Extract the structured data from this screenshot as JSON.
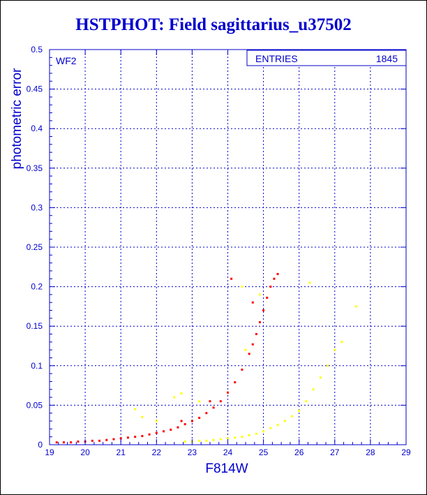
{
  "chart_data": {
    "type": "scatter",
    "title": "HSTPHOT: Field sagittarius_u37502",
    "xlabel": "F814W",
    "ylabel": "photometric error",
    "xlim": [
      19,
      29
    ],
    "ylim": [
      0,
      0.5
    ],
    "x_ticks": [
      19,
      20,
      21,
      22,
      23,
      24,
      25,
      26,
      27,
      28,
      29
    ],
    "y_ticks": [
      0,
      0.05,
      0.1,
      0.15,
      0.2,
      0.25,
      0.3,
      0.35,
      0.4,
      0.45,
      0.5
    ],
    "y_tick_labels": [
      "0",
      "0.05",
      "0.1",
      "0.15",
      "0.2",
      "0.25",
      "0.3",
      "0.35",
      "0.4",
      "0.45",
      "0.5"
    ],
    "grid": true,
    "panel_label": "WF2",
    "stats_box": {
      "label": "ENTRIES",
      "value": "1845"
    },
    "colors": {
      "axis": "#0000cc",
      "grid": "#0000cc",
      "primary": "#ff0000",
      "secondary": "#ffff00"
    },
    "series": [
      {
        "color": "#ff0000",
        "points": [
          [
            19.2,
            0.003
          ],
          [
            19.4,
            0.003
          ],
          [
            19.6,
            0.003
          ],
          [
            19.8,
            0.004
          ],
          [
            20.0,
            0.004
          ],
          [
            20.2,
            0.005
          ],
          [
            20.4,
            0.005
          ],
          [
            20.6,
            0.006
          ],
          [
            20.8,
            0.007
          ],
          [
            21.0,
            0.008
          ],
          [
            21.2,
            0.009
          ],
          [
            21.4,
            0.01
          ],
          [
            21.6,
            0.011
          ],
          [
            21.8,
            0.013
          ],
          [
            22.0,
            0.015
          ],
          [
            22.2,
            0.017
          ],
          [
            22.4,
            0.019
          ],
          [
            22.6,
            0.022
          ],
          [
            22.8,
            0.026
          ],
          [
            23.0,
            0.03
          ],
          [
            23.2,
            0.034
          ],
          [
            23.4,
            0.04
          ],
          [
            23.6,
            0.047
          ],
          [
            23.8,
            0.055
          ],
          [
            24.0,
            0.066
          ],
          [
            24.2,
            0.079
          ],
          [
            24.4,
            0.095
          ],
          [
            24.6,
            0.115
          ],
          [
            24.7,
            0.127
          ],
          [
            24.8,
            0.14
          ],
          [
            24.9,
            0.155
          ],
          [
            25.0,
            0.17
          ],
          [
            25.1,
            0.186
          ],
          [
            25.2,
            0.2
          ],
          [
            25.3,
            0.21
          ],
          [
            25.4,
            0.216
          ],
          [
            24.1,
            0.21
          ],
          [
            24.7,
            0.18
          ],
          [
            23.5,
            0.055
          ],
          [
            22.7,
            0.03
          ]
        ]
      },
      {
        "color": "#ffff00",
        "points": [
          [
            22.8,
            0.004
          ],
          [
            23.0,
            0.004
          ],
          [
            23.2,
            0.005
          ],
          [
            23.4,
            0.005
          ],
          [
            23.6,
            0.006
          ],
          [
            23.8,
            0.007
          ],
          [
            24.0,
            0.008
          ],
          [
            24.2,
            0.009
          ],
          [
            24.4,
            0.01
          ],
          [
            24.6,
            0.012
          ],
          [
            24.8,
            0.014
          ],
          [
            25.0,
            0.017
          ],
          [
            25.2,
            0.021
          ],
          [
            25.4,
            0.025
          ],
          [
            25.6,
            0.03
          ],
          [
            25.8,
            0.036
          ],
          [
            26.0,
            0.043
          ],
          [
            26.2,
            0.055
          ],
          [
            26.4,
            0.07
          ],
          [
            26.6,
            0.085
          ],
          [
            26.8,
            0.1
          ],
          [
            27.0,
            0.12
          ],
          [
            27.2,
            0.13
          ],
          [
            27.6,
            0.175
          ],
          [
            26.3,
            0.205
          ],
          [
            24.5,
            0.12
          ],
          [
            24.4,
            0.2
          ],
          [
            22.7,
            0.065
          ],
          [
            22.0,
            0.03
          ],
          [
            21.6,
            0.035
          ],
          [
            21.4,
            0.045
          ],
          [
            23.2,
            0.055
          ],
          [
            22.5,
            0.06
          ],
          [
            24.9,
            0.19
          ]
        ]
      }
    ]
  }
}
